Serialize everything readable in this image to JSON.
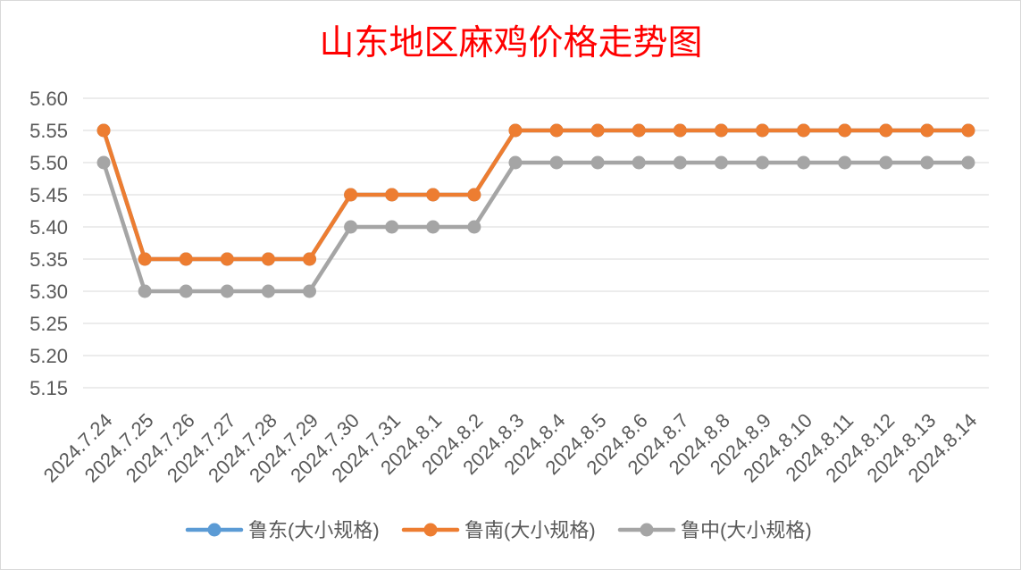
{
  "chart_data": {
    "type": "line",
    "title": "山东地区麻鸡价格走势图",
    "categories": [
      "2024.7.24",
      "2024.7.25",
      "2024.7.26",
      "2024.7.27",
      "2024.7.28",
      "2024.7.29",
      "2024.7.30",
      "2024.7.31",
      "2024.8.1",
      "2024.8.2",
      "2024.8.3",
      "2024.8.4",
      "2024.8.5",
      "2024.8.6",
      "2024.8.7",
      "2024.8.8",
      "2024.8.9",
      "2024.8.10",
      "2024.8.11",
      "2024.8.12",
      "2024.8.13",
      "2024.8.14"
    ],
    "ylim": [
      5.15,
      5.6
    ],
    "yticks": [
      "5.15",
      "5.20",
      "5.25",
      "5.30",
      "5.35",
      "5.40",
      "5.45",
      "5.50",
      "5.55",
      "5.60"
    ],
    "grid": true,
    "legend": "bottom",
    "series": [
      {
        "name": "鲁东(大小规格)",
        "color": "#5B9BD5",
        "values": [
          5.55,
          5.35,
          5.35,
          5.35,
          5.35,
          5.35,
          5.45,
          5.45,
          5.45,
          5.45,
          5.55,
          5.55,
          5.55,
          5.55,
          5.55,
          5.55,
          5.55,
          5.55,
          5.55,
          5.55,
          5.55,
          5.55
        ]
      },
      {
        "name": "鲁南(大小规格)",
        "color": "#ED7D31",
        "values": [
          5.55,
          5.35,
          5.35,
          5.35,
          5.35,
          5.35,
          5.45,
          5.45,
          5.45,
          5.45,
          5.55,
          5.55,
          5.55,
          5.55,
          5.55,
          5.55,
          5.55,
          5.55,
          5.55,
          5.55,
          5.55,
          5.55
        ]
      },
      {
        "name": "鲁中(大小规格)",
        "color": "#A5A5A5",
        "values": [
          5.5,
          5.3,
          5.3,
          5.3,
          5.3,
          5.3,
          5.4,
          5.4,
          5.4,
          5.4,
          5.5,
          5.5,
          5.5,
          5.5,
          5.5,
          5.5,
          5.5,
          5.5,
          5.5,
          5.5,
          5.5,
          5.5
        ]
      }
    ]
  },
  "colors": {
    "title": "#FF0000",
    "gridline": "#D9D9D9",
    "axis_text": "#595959",
    "chart_border": "#D9D9D9",
    "background": "#FFFFFF"
  }
}
